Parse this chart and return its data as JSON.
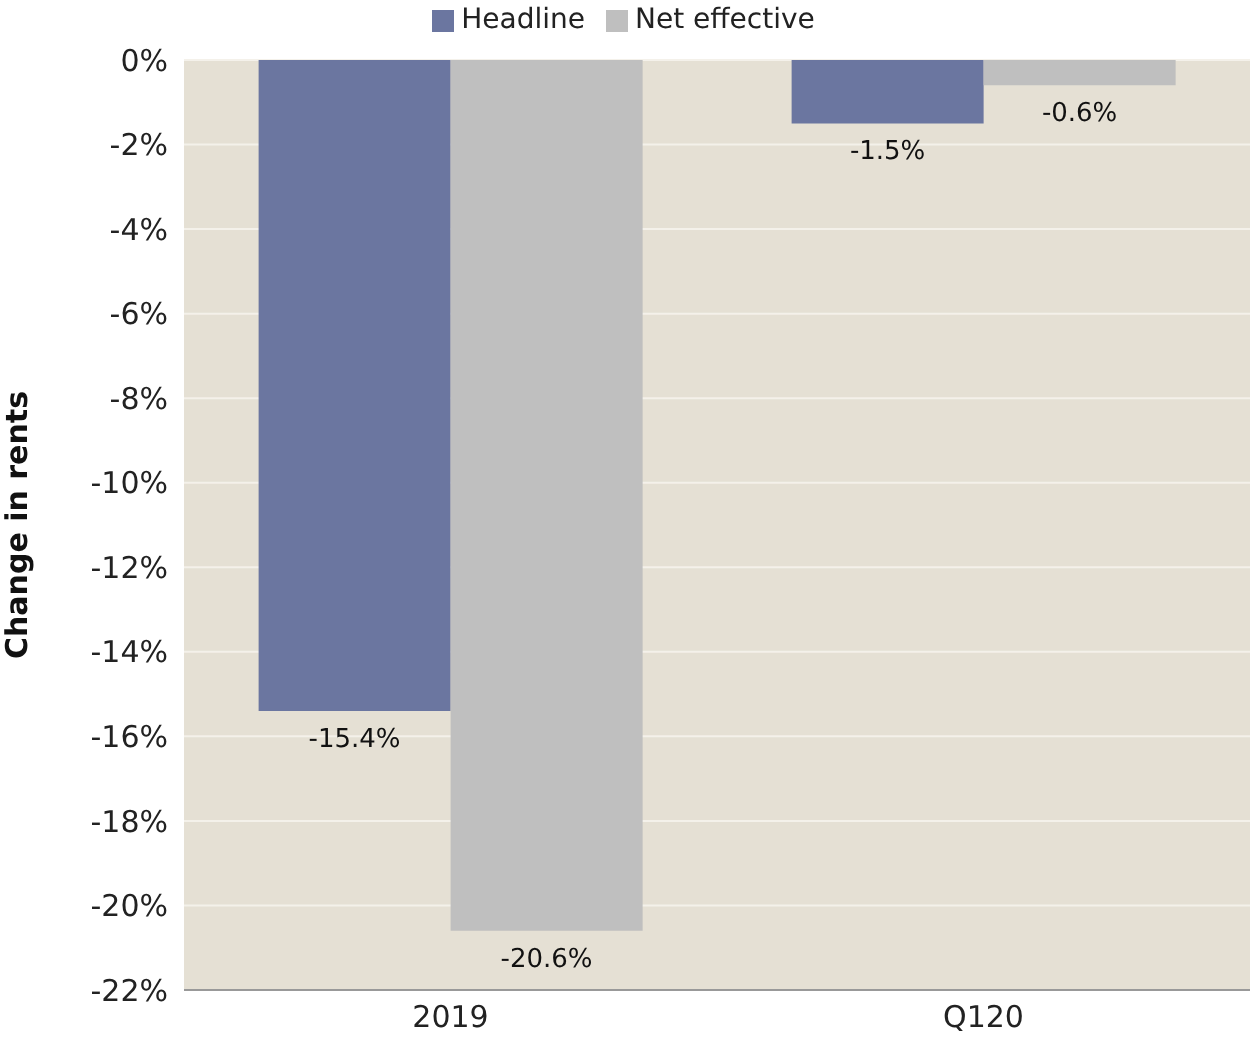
{
  "chart_data": {
    "type": "bar",
    "ylabel": "Change in rents",
    "categories": [
      "2019",
      "Q120"
    ],
    "series": [
      {
        "name": "Headline",
        "color": "#6b76a0",
        "values": [
          -15.4,
          -1.5
        ],
        "value_labels": [
          "-15.4%",
          "-1.5%"
        ]
      },
      {
        "name": "Net effective",
        "color": "#bfbfbf",
        "values": [
          -20.6,
          -0.6
        ],
        "value_labels": [
          "-20.6%",
          "-0.6%"
        ]
      }
    ],
    "ylim": [
      -22,
      0
    ],
    "yticks": [
      {
        "value": 0,
        "label": "0%"
      },
      {
        "value": -2,
        "label": "-2%"
      },
      {
        "value": -4,
        "label": "-4%"
      },
      {
        "value": -6,
        "label": "-6%"
      },
      {
        "value": -8,
        "label": "-8%"
      },
      {
        "value": -10,
        "label": "-10%"
      },
      {
        "value": -12,
        "label": "-12%"
      },
      {
        "value": -14,
        "label": "-14%"
      },
      {
        "value": -16,
        "label": "-16%"
      },
      {
        "value": -18,
        "label": "-18%"
      },
      {
        "value": -20,
        "label": "-20%"
      },
      {
        "value": -22,
        "label": "-22%"
      }
    ],
    "grid": "y",
    "legend": "top"
  }
}
